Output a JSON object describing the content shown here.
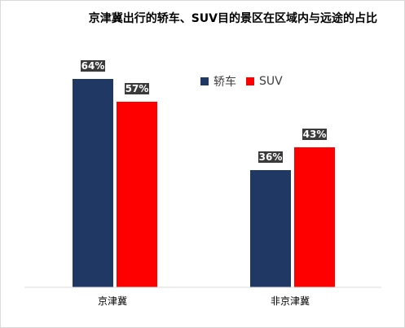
{
  "chart_data": {
    "type": "bar",
    "title": "京津冀出行的轿车、SUV目的景区在区域内与远途的占比",
    "categories": [
      "京津冀",
      "非京津冀"
    ],
    "series": [
      {
        "name": "轿车",
        "values": [
          64,
          36
        ],
        "labels": [
          "64%",
          "36%"
        ],
        "color": "#1F3864"
      },
      {
        "name": "SUV",
        "values": [
          57,
          43
        ],
        "labels": [
          "57%",
          "43%"
        ],
        "color": "#FF0000"
      }
    ],
    "ylim": [
      0,
      100
    ],
    "grid": false,
    "legend_position": "top-right"
  }
}
